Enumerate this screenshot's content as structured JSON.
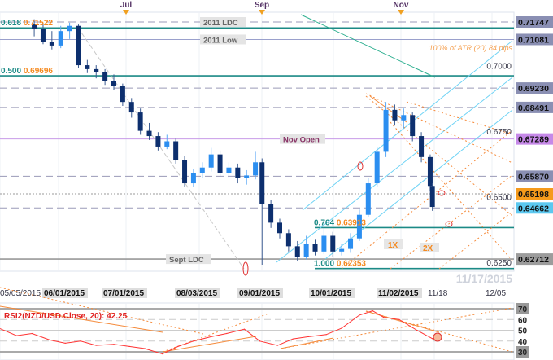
{
  "chart_data": [
    {
      "type": "candlestick",
      "symbol": "NZD/USD",
      "watermark": "11/17/2015",
      "ylim": [
        0.6225,
        0.7195
      ],
      "top_markers": [
        "Jul",
        "Sep",
        "Nov"
      ],
      "x_tick_labels": [
        "05/05/2015",
        "06/01/2015",
        "07/01/2015",
        "08/03/2015",
        "09/01/2015",
        "10/01/2015",
        "11/02/2015",
        "11/18",
        "12/05"
      ],
      "y_tick_labels": [
        "0.7000",
        "0.6750",
        "0.6500",
        "0.6250"
      ],
      "levels": [
        {
          "price": 0.71747,
          "label": "0.71747",
          "style": "dashed",
          "color": "#9a9ab8",
          "badge": "#8a8fb3",
          "text": "2011 LDC"
        },
        {
          "price": 0.71522,
          "label": "",
          "style": "solid",
          "color": "#1b8a86",
          "text": "",
          "fib": "0.618",
          "fib_price": "0.71522"
        },
        {
          "price": 0.71081,
          "label": "0.71081",
          "style": "thin",
          "color": "#9aa0cc",
          "badge": "#8a8fb3",
          "text": "2011 Low"
        },
        {
          "price": 0.69696,
          "label": "",
          "style": "solid",
          "color": "#1b8a86",
          "text": "",
          "fib": "0.500",
          "fib_price": "0.69696"
        },
        {
          "price": 0.6923,
          "label": "0.69230",
          "style": "dashed",
          "color": "#9a9ab8",
          "badge": "#8a8fb3",
          "text": ""
        },
        {
          "price": 0.68491,
          "label": "0.68491",
          "style": "dashed",
          "color": "#9a9ab8",
          "badge": "#8a8fb3",
          "text": ""
        },
        {
          "price": 0.67289,
          "label": "0.67289",
          "style": "thin",
          "color": "#c89be8",
          "badge": "#c689e8",
          "text": "Nov Open"
        },
        {
          "price": 0.6587,
          "label": "0.65870",
          "style": "dashed",
          "color": "#9a9ab8",
          "badge": "#8a8fb3",
          "text": ""
        },
        {
          "price": 0.65198,
          "label": "0.65198",
          "style": "dotted",
          "color": "#999999",
          "badge": "#f59a1b",
          "text": ""
        },
        {
          "price": 0.64662,
          "label": "0.64662",
          "style": "dashed",
          "color": "#9a9ab8",
          "badge": "#5cc8f0",
          "text": ""
        },
        {
          "price": 0.63913,
          "label": "",
          "style": "solid-partial",
          "color": "#1b8a86",
          "text": "",
          "fib": "0.764",
          "fib_price": "0.63913"
        },
        {
          "price": 0.62712,
          "label": "0.62712",
          "style": "solid",
          "color": "#999999",
          "badge": "#9c9c9c",
          "text": "Sept LDC"
        },
        {
          "price": 0.62353,
          "label": "",
          "style": "solid-partial",
          "color": "#1b8a86",
          "text": "",
          "fib": "1.000",
          "fib_price": "0.62353"
        }
      ],
      "annotations": [
        "100% of ATR (20) 84 pips",
        "1X",
        "2X"
      ],
      "candles": [
        [
          "2015-05-21",
          0.7165,
          0.7185,
          0.712,
          0.715
        ],
        [
          "2015-05-25",
          0.715,
          0.717,
          0.709,
          0.71
        ],
        [
          "2015-05-29",
          0.71,
          0.714,
          0.707,
          0.7085
        ],
        [
          "2015-06-02",
          0.7085,
          0.716,
          0.7075,
          0.714
        ],
        [
          "2015-06-06",
          0.714,
          0.7172,
          0.711,
          0.716
        ],
        [
          "2015-06-10",
          0.716,
          0.7165,
          0.7,
          0.701
        ],
        [
          "2015-06-14",
          0.701,
          0.703,
          0.698,
          0.6995
        ],
        [
          "2015-06-18",
          0.6995,
          0.701,
          0.696,
          0.6985
        ],
        [
          "2015-06-22",
          0.6985,
          0.6995,
          0.6935,
          0.695
        ],
        [
          "2015-06-26",
          0.695,
          0.6975,
          0.6915,
          0.693
        ],
        [
          "2015-06-30",
          0.693,
          0.694,
          0.6855,
          0.687
        ],
        [
          "2015-07-04",
          0.687,
          0.6885,
          0.681,
          0.683
        ],
        [
          "2015-07-08",
          0.683,
          0.6845,
          0.6745,
          0.676
        ],
        [
          "2015-07-12",
          0.676,
          0.679,
          0.6725,
          0.674
        ],
        [
          "2015-07-16",
          0.674,
          0.6755,
          0.6685,
          0.67
        ],
        [
          "2015-07-20",
          0.67,
          0.6745,
          0.669,
          0.672
        ],
        [
          "2015-07-24",
          0.672,
          0.673,
          0.6635,
          0.665
        ],
        [
          "2015-07-28",
          0.665,
          0.6665,
          0.6545,
          0.656
        ],
        [
          "2015-08-01",
          0.656,
          0.6615,
          0.6545,
          0.66
        ],
        [
          "2015-08-05",
          0.66,
          0.664,
          0.658,
          0.662
        ],
        [
          "2015-08-09",
          0.662,
          0.6695,
          0.6605,
          0.667
        ],
        [
          "2015-08-13",
          0.667,
          0.6685,
          0.6585,
          0.66
        ],
        [
          "2015-08-17",
          0.66,
          0.664,
          0.658,
          0.662
        ],
        [
          "2015-08-21",
          0.662,
          0.6635,
          0.656,
          0.658
        ],
        [
          "2015-08-25",
          0.658,
          0.661,
          0.6555,
          0.659
        ],
        [
          "2015-08-29",
          0.659,
          0.668,
          0.6575,
          0.664
        ],
        [
          "2015-09-01",
          0.664,
          0.6655,
          0.625,
          0.648
        ],
        [
          "2015-09-05",
          0.648,
          0.6495,
          0.639,
          0.641
        ],
        [
          "2015-09-09",
          0.641,
          0.6425,
          0.635,
          0.637
        ],
        [
          "2015-09-13",
          0.637,
          0.6385,
          0.63,
          0.632
        ],
        [
          "2015-09-17",
          0.632,
          0.634,
          0.6265,
          0.628
        ],
        [
          "2015-09-21",
          0.628,
          0.636,
          0.627,
          0.633
        ],
        [
          "2015-09-25",
          0.633,
          0.6345,
          0.6285,
          0.63
        ],
        [
          "2015-09-29",
          0.63,
          0.64,
          0.629,
          0.636
        ],
        [
          "2015-10-03",
          0.636,
          0.6375,
          0.628,
          0.63
        ],
        [
          "2015-10-07",
          0.63,
          0.633,
          0.6285,
          0.631
        ],
        [
          "2015-10-11",
          0.631,
          0.637,
          0.6295,
          0.635
        ],
        [
          "2015-10-15",
          0.635,
          0.646,
          0.634,
          0.644
        ],
        [
          "2015-10-19",
          0.644,
          0.658,
          0.643,
          0.656
        ],
        [
          "2015-10-23",
          0.656,
          0.67,
          0.6545,
          0.668
        ],
        [
          "2015-10-27",
          0.668,
          0.687,
          0.666,
          0.684
        ],
        [
          "2015-10-31",
          0.684,
          0.686,
          0.678,
          0.68
        ],
        [
          "2015-11-04",
          0.68,
          0.6845,
          0.677,
          0.682
        ],
        [
          "2015-11-08",
          0.682,
          0.683,
          0.672,
          0.674
        ],
        [
          "2015-11-12",
          0.674,
          0.6755,
          0.664,
          0.666
        ],
        [
          "2015-11-16",
          0.666,
          0.667,
          0.653,
          0.655
        ],
        [
          "2015-11-17",
          0.655,
          0.656,
          0.6455,
          0.647
        ]
      ]
    },
    {
      "type": "line",
      "title": "RSI2(NZD/USD.Close, 20): 42.25",
      "ylim": [
        28,
        72
      ],
      "y_tick_labels": [
        "70",
        "60",
        "50",
        "40",
        "30"
      ],
      "line_color": "#ff3333",
      "points": [
        [
          "2015-05-05",
          52
        ],
        [
          "2015-05-13",
          45
        ],
        [
          "2015-05-20",
          47
        ],
        [
          "2015-05-28",
          41
        ],
        [
          "2015-06-04",
          38
        ],
        [
          "2015-06-11",
          40
        ],
        [
          "2015-06-18",
          36
        ],
        [
          "2015-06-26",
          37
        ],
        [
          "2015-07-03",
          35
        ],
        [
          "2015-07-10",
          33
        ],
        [
          "2015-07-18",
          28
        ],
        [
          "2015-07-25",
          35
        ],
        [
          "2015-08-01",
          40
        ],
        [
          "2015-08-09",
          44
        ],
        [
          "2015-08-16",
          47
        ],
        [
          "2015-08-24",
          51
        ],
        [
          "2015-08-31",
          40
        ],
        [
          "2015-09-08",
          36
        ],
        [
          "2015-09-15",
          42
        ],
        [
          "2015-09-22",
          44
        ],
        [
          "2015-09-30",
          46
        ],
        [
          "2015-10-07",
          52
        ],
        [
          "2015-10-15",
          64
        ],
        [
          "2015-10-21",
          68
        ],
        [
          "2015-10-26",
          62
        ],
        [
          "2015-11-02",
          60
        ],
        [
          "2015-11-10",
          50
        ],
        [
          "2015-11-17",
          42.25
        ]
      ]
    }
  ]
}
